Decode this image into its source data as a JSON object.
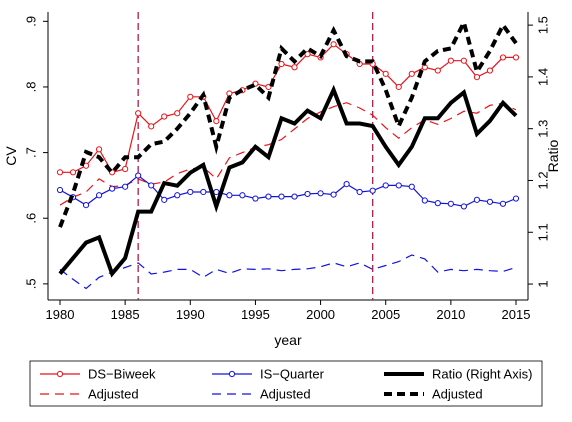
{
  "chart_data": {
    "type": "line",
    "xlabel": "year",
    "ylabel_left": "CV",
    "ylabel_right": "Ratio",
    "xlim": [
      1980,
      2015
    ],
    "ylim_left": [
      0.5,
      0.9
    ],
    "ylim_right": [
      1.0,
      1.5
    ],
    "x_ticks": [
      1980,
      1985,
      1990,
      1995,
      2000,
      2005,
      2010,
      2015
    ],
    "x_tick_labels": [
      "1980",
      "1985",
      "1990",
      "1995",
      "2000",
      "2005",
      "2010",
      "2015"
    ],
    "y_left_ticks": [
      0.5,
      0.6,
      0.7,
      0.8,
      0.9
    ],
    "y_left_tick_labels": [
      ".5",
      ".6",
      ".7",
      ".8",
      ".9"
    ],
    "y_right_ticks": [
      1.0,
      1.1,
      1.2,
      1.3,
      1.4,
      1.5
    ],
    "y_right_tick_labels": [
      "1",
      "1.1",
      "1.2",
      "1.3",
      "1.4",
      "1.5"
    ],
    "vertical_lines": [
      1986,
      2004
    ],
    "grid": false,
    "legend_position": "bottom",
    "x": [
      1980,
      1981,
      1982,
      1983,
      1984,
      1985,
      1986,
      1987,
      1988,
      1989,
      1990,
      1991,
      1992,
      1993,
      1994,
      1995,
      1996,
      1997,
      1998,
      1999,
      2000,
      2001,
      2002,
      2003,
      2004,
      2005,
      2006,
      2007,
      2008,
      2009,
      2010,
      2011,
      2012,
      2013,
      2014,
      2015
    ],
    "series": [
      {
        "name": "DS−Biweek",
        "axis": "left",
        "color": "#e8141b",
        "style": "solid",
        "marker": "circle",
        "values": [
          0.67,
          0.67,
          0.68,
          0.705,
          0.67,
          0.675,
          0.76,
          0.74,
          0.755,
          0.76,
          0.785,
          0.785,
          0.748,
          0.79,
          0.795,
          0.805,
          0.8,
          0.835,
          0.83,
          0.85,
          0.845,
          0.865,
          0.85,
          0.835,
          0.835,
          0.82,
          0.8,
          0.82,
          0.83,
          0.825,
          0.84,
          0.84,
          0.815,
          0.825,
          0.845,
          0.845
        ]
      },
      {
        "name": "Adjusted",
        "axis": "left",
        "color": "#e8141b",
        "style": "dashed",
        "marker": "none",
        "values": [
          0.62,
          0.632,
          0.64,
          0.66,
          0.648,
          0.65,
          0.66,
          0.652,
          0.655,
          0.668,
          0.675,
          0.678,
          0.66,
          0.692,
          0.7,
          0.708,
          0.712,
          0.72,
          0.736,
          0.752,
          0.762,
          0.77,
          0.776,
          0.768,
          0.757,
          0.738,
          0.722,
          0.738,
          0.75,
          0.743,
          0.752,
          0.763,
          0.76,
          0.772,
          0.775,
          0.765
        ]
      },
      {
        "name": "IS−Quarter",
        "axis": "left",
        "color": "#1313e0",
        "style": "solid",
        "marker": "circle",
        "values": [
          0.643,
          0.632,
          0.62,
          0.635,
          0.645,
          0.648,
          0.665,
          0.65,
          0.628,
          0.635,
          0.64,
          0.64,
          0.64,
          0.635,
          0.635,
          0.63,
          0.633,
          0.633,
          0.633,
          0.637,
          0.638,
          0.636,
          0.652,
          0.64,
          0.642,
          0.65,
          0.65,
          0.648,
          0.627,
          0.623,
          0.622,
          0.618,
          0.628,
          0.625,
          0.622,
          0.63
        ]
      },
      {
        "name": "Adjusted",
        "axis": "left",
        "color": "#1313e0",
        "style": "dashed",
        "marker": "none",
        "values": [
          0.522,
          0.507,
          0.493,
          0.51,
          0.518,
          0.525,
          0.532,
          0.515,
          0.518,
          0.522,
          0.522,
          0.51,
          0.522,
          0.516,
          0.523,
          0.522,
          0.523,
          0.52,
          0.522,
          0.523,
          0.526,
          0.532,
          0.526,
          0.532,
          0.522,
          0.528,
          0.534,
          0.544,
          0.538,
          0.518,
          0.522,
          0.52,
          0.522,
          0.52,
          0.519,
          0.525
        ]
      },
      {
        "name": "Ratio (Right Axis)",
        "axis": "right",
        "color": "#000000",
        "style": "solid",
        "marker": "none",
        "values": [
          1.02,
          1.05,
          1.08,
          1.09,
          1.02,
          1.05,
          1.14,
          1.14,
          1.195,
          1.19,
          1.215,
          1.23,
          1.15,
          1.225,
          1.235,
          1.265,
          1.245,
          1.32,
          1.31,
          1.335,
          1.32,
          1.375,
          1.31,
          1.31,
          1.305,
          1.265,
          1.23,
          1.265,
          1.32,
          1.32,
          1.35,
          1.37,
          1.29,
          1.315,
          1.35,
          1.325
        ]
      },
      {
        "name": "Adjusted",
        "axis": "right",
        "color": "#000000",
        "style": "dashed",
        "marker": "none",
        "values": [
          1.11,
          1.175,
          1.255,
          1.245,
          1.215,
          1.245,
          1.245,
          1.27,
          1.275,
          1.3,
          1.33,
          1.365,
          1.265,
          1.36,
          1.375,
          1.385,
          1.36,
          1.455,
          1.43,
          1.455,
          1.44,
          1.49,
          1.44,
          1.43,
          1.43,
          1.375,
          1.305,
          1.36,
          1.43,
          1.45,
          1.455,
          1.505,
          1.41,
          1.45,
          1.5,
          1.465
        ]
      }
    ],
    "legend_rows": [
      [
        "DS−Biweek",
        "IS−Quarter",
        "Ratio (Right Axis)"
      ],
      [
        "Adjusted",
        "Adjusted",
        "Adjusted"
      ]
    ],
    "colors": {
      "red": "#e8141b",
      "blue": "#1313e0",
      "black": "#000000",
      "vline": "#b01c4a"
    }
  }
}
